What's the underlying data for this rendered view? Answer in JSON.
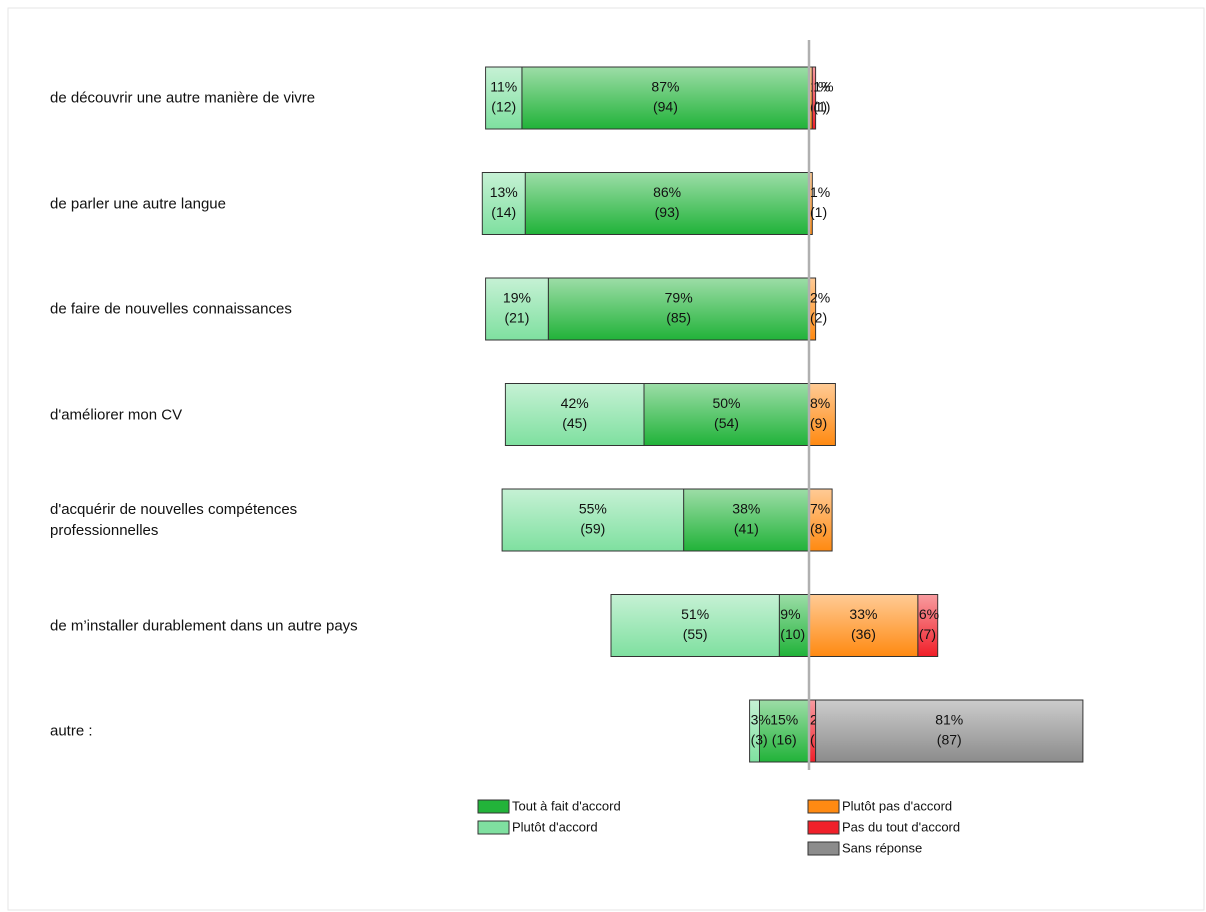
{
  "chart_data": {
    "type": "diverging-bar",
    "categories": [
      "de découvrir une autre manière de vivre",
      "de parler une autre langue",
      "de faire de nouvelles connaissances",
      "d'améliorer mon CV",
      "d'acquérir de nouvelles compétences\nprofessionnelles",
      "de m’installer durablement dans un autre pays",
      "autre :"
    ],
    "xlim": [
      -100,
      100
    ],
    "series": [
      {
        "name": "Tout à fait d'accord",
        "color": "#22b33a",
        "side": "left",
        "values": [
          87,
          86,
          79,
          50,
          38,
          9,
          15
        ],
        "value_labels": [
          "87%",
          "86%",
          "79%",
          "50%",
          "38%",
          "9%",
          "15%"
        ],
        "count_labels": [
          "(94)",
          "(93)",
          "(85)",
          "(54)",
          "(41)",
          "(10)",
          "(16)"
        ]
      },
      {
        "name": "Plutôt d'accord",
        "color": "#7fe0a0",
        "side": "left",
        "values": [
          11,
          13,
          19,
          42,
          55,
          51,
          3
        ],
        "value_labels": [
          "11%",
          "13%",
          "19%",
          "42%",
          "55%",
          "51%",
          "3%"
        ],
        "count_labels": [
          "(12)",
          "(14)",
          "(21)",
          "(45)",
          "(59)",
          "(55)",
          "(3)"
        ]
      },
      {
        "name": "Plutôt pas d'accord",
        "color": "#ff8a12",
        "side": "right",
        "values": [
          1,
          1,
          2,
          8,
          7,
          33,
          null
        ],
        "value_labels": [
          "1%",
          "1%",
          "2%",
          "8%",
          "7%",
          "33%",
          null
        ],
        "count_labels": [
          "(1)",
          "(1)",
          "(2)",
          "(9)",
          "(8)",
          "(36)",
          null
        ]
      },
      {
        "name": "Pas du tout d'accord",
        "color": "#f0202a",
        "side": "right",
        "values": [
          1,
          null,
          null,
          null,
          null,
          6,
          2
        ],
        "value_labels": [
          "1%",
          null,
          null,
          null,
          null,
          "6%",
          "2%"
        ],
        "count_labels": [
          "(1)",
          null,
          null,
          null,
          null,
          "(7)",
          "(2)"
        ]
      },
      {
        "name": "Sans réponse",
        "color": "#8c8c8c",
        "side": "right",
        "values": [
          null,
          null,
          null,
          null,
          null,
          null,
          81
        ],
        "value_labels": [
          null,
          null,
          null,
          null,
          null,
          null,
          "81%"
        ],
        "count_labels": [
          null,
          null,
          null,
          null,
          null,
          null,
          "(87)"
        ]
      }
    ]
  }
}
